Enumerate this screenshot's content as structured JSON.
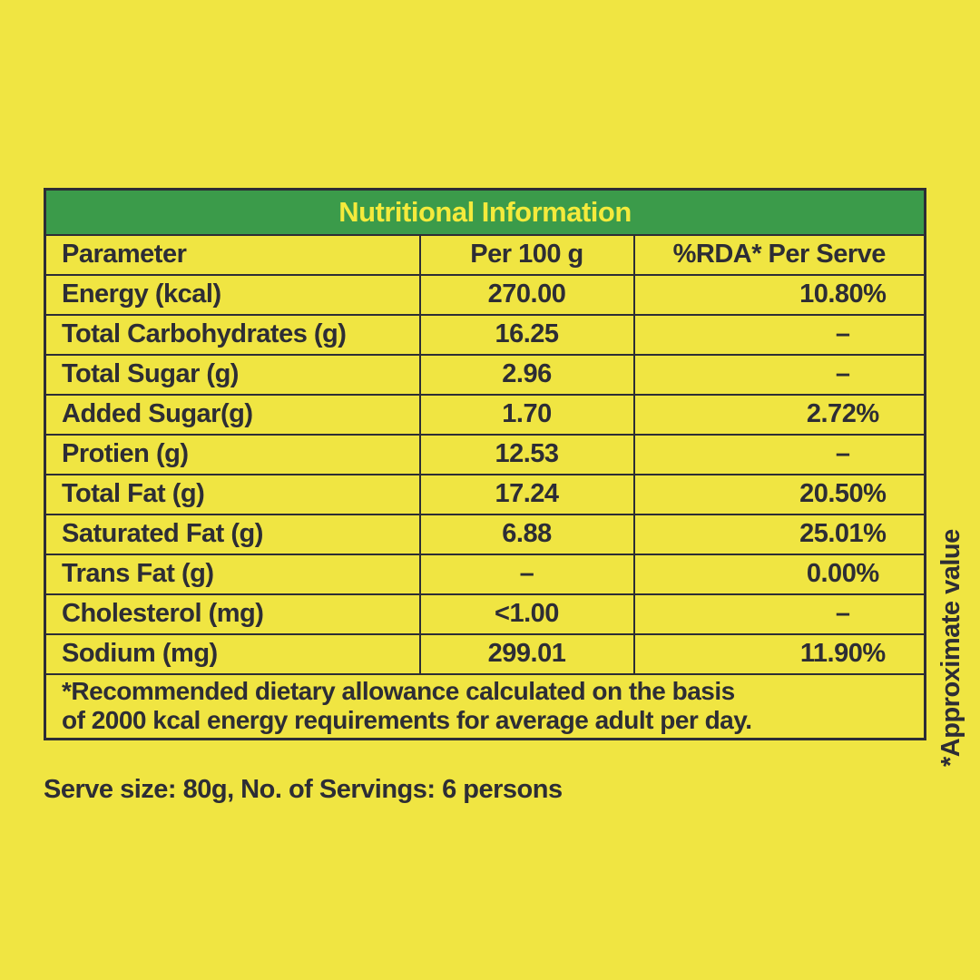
{
  "colors": {
    "background": "#F0E542",
    "header_green": "#3B9B4A",
    "header_text_yellow": "#F4EA3C",
    "text_ink": "#2D2D35"
  },
  "table": {
    "title": "Nutritional Information",
    "columns": [
      {
        "label": "Parameter"
      },
      {
        "label": "Per 100 g"
      },
      {
        "label": "%RDA* Per Serve"
      }
    ],
    "rows": [
      {
        "parameter": "Energy (kcal)",
        "per100g": "270.00",
        "rda": "10.80%"
      },
      {
        "parameter": "Total Carbohydrates (g)",
        "per100g": "16.25",
        "rda": "–"
      },
      {
        "parameter": "Total Sugar (g)",
        "per100g": "2.96",
        "rda": "–"
      },
      {
        "parameter": "Added Sugar(g)",
        "per100g": "1.70",
        "rda": "2.72%"
      },
      {
        "parameter": "Protien (g)",
        "per100g": "12.53",
        "rda": "–"
      },
      {
        "parameter": "Total Fat (g)",
        "per100g": "17.24",
        "rda": "20.50%"
      },
      {
        "parameter": "Saturated Fat (g)",
        "per100g": "6.88",
        "rda": "25.01%"
      },
      {
        "parameter": "Trans Fat (g)",
        "per100g": "–",
        "rda": "0.00%"
      },
      {
        "parameter": "Cholesterol (mg)",
        "per100g": "<1.00",
        "rda": "–"
      },
      {
        "parameter": "Sodium (mg)",
        "per100g": "299.01",
        "rda": "11.90%"
      }
    ],
    "footnote": {
      "line1": "*Recommended dietary allowance calculated on the basis",
      "line2": "of 2000 kcal energy requirements for average adult per day."
    }
  },
  "serve_info": {
    "text": "Serve size: 80g, No. of Servings: 6 persons"
  },
  "side_note": {
    "text": "*Approximate value"
  }
}
